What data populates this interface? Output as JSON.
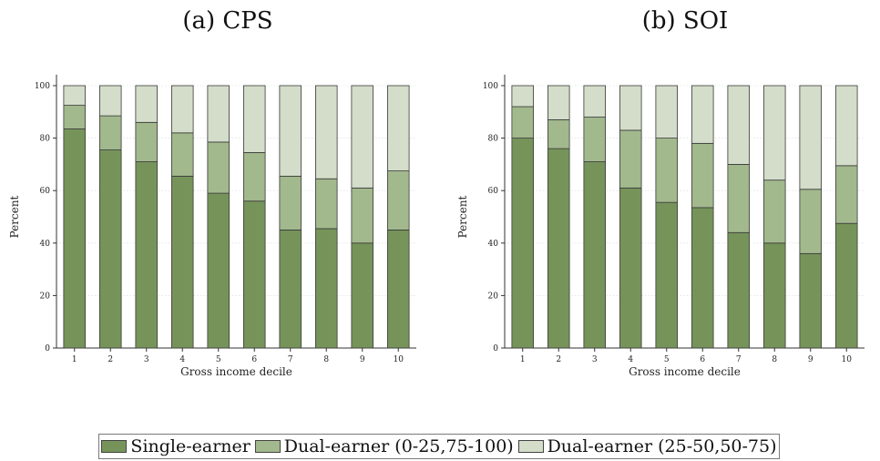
{
  "colors": {
    "single": "#76945a",
    "dual_low": "#a2b88d",
    "dual_mid": "#d3ddc9"
  },
  "legend": {
    "items": [
      {
        "label": "Single-earner",
        "color_key": "single"
      },
      {
        "label": "Dual-earner (0-25,75-100)",
        "color_key": "dual_low"
      },
      {
        "label": "Dual-earner (25-50,50-75)",
        "color_key": "dual_mid"
      }
    ]
  },
  "chart_data": [
    {
      "type": "bar",
      "stacked": true,
      "title": "(a) CPS",
      "xlabel": "Gross income decile",
      "ylabel": "Percent",
      "ylim": [
        0,
        100
      ],
      "yticks": [
        0,
        20,
        40,
        60,
        80,
        100
      ],
      "grid": true,
      "legend": "bottom",
      "categories": [
        "1",
        "2",
        "3",
        "4",
        "5",
        "6",
        "7",
        "8",
        "9",
        "10"
      ],
      "series": [
        {
          "name": "Single-earner",
          "values": [
            83.5,
            75.5,
            71,
            65.5,
            59,
            56,
            45,
            45.5,
            40,
            45
          ]
        },
        {
          "name": "Dual-earner (0-25,75-100)",
          "values": [
            9,
            13,
            15,
            16.5,
            19.5,
            18.5,
            20.5,
            19,
            21,
            22.5
          ]
        },
        {
          "name": "Dual-earner (25-50,50-75)",
          "values": [
            7.5,
            11.5,
            14,
            18,
            21.5,
            25.5,
            34.5,
            35.5,
            39,
            32.5
          ]
        }
      ]
    },
    {
      "type": "bar",
      "stacked": true,
      "title": "(b) SOI",
      "xlabel": "Gross income decile",
      "ylabel": "Percent",
      "ylim": [
        0,
        100
      ],
      "yticks": [
        0,
        20,
        40,
        60,
        80,
        100
      ],
      "grid": true,
      "legend": "bottom",
      "categories": [
        "1",
        "2",
        "3",
        "4",
        "5",
        "6",
        "7",
        "8",
        "9",
        "10"
      ],
      "series": [
        {
          "name": "Single-earner",
          "values": [
            80,
            76,
            71,
            61,
            55.5,
            53.5,
            44,
            40,
            36,
            47.5
          ]
        },
        {
          "name": "Dual-earner (0-25,75-100)",
          "values": [
            12,
            11,
            17,
            22,
            24.5,
            24.5,
            26,
            24,
            24.5,
            22
          ]
        },
        {
          "name": "Dual-earner (25-50,50-75)",
          "values": [
            8,
            13,
            12,
            17,
            20,
            22,
            30,
            36,
            39.5,
            30.5
          ]
        }
      ]
    }
  ]
}
